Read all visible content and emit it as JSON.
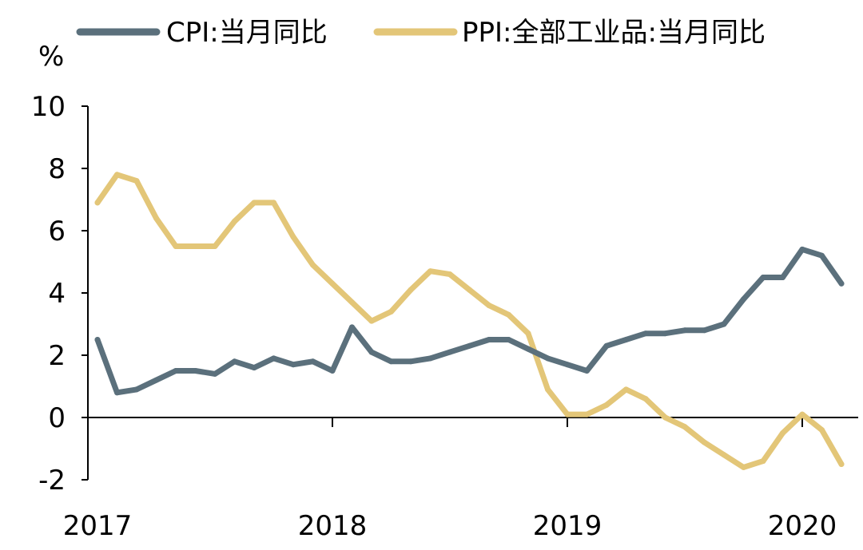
{
  "chart_data": {
    "type": "line",
    "title": "",
    "xlabel": "",
    "ylabel": "%",
    "ylim": [
      -2,
      10
    ],
    "yticks": [
      "-2",
      "0",
      "2",
      "4",
      "6",
      "8",
      "10"
    ],
    "xticks": [
      "2017",
      "2018",
      "2019",
      "2020"
    ],
    "grid": false,
    "legend_position": "top",
    "x": [
      "2017-01",
      "2017-02",
      "2017-03",
      "2017-04",
      "2017-05",
      "2017-06",
      "2017-07",
      "2017-08",
      "2017-09",
      "2017-10",
      "2017-11",
      "2017-12",
      "2018-01",
      "2018-02",
      "2018-03",
      "2018-04",
      "2018-05",
      "2018-06",
      "2018-07",
      "2018-08",
      "2018-09",
      "2018-10",
      "2018-11",
      "2018-12",
      "2019-01",
      "2019-02",
      "2019-03",
      "2019-04",
      "2019-05",
      "2019-06",
      "2019-07",
      "2019-08",
      "2019-09",
      "2019-10",
      "2019-11",
      "2019-12",
      "2020-01",
      "2020-02",
      "2020-03"
    ],
    "series": [
      {
        "name": "CPI:当月同比",
        "color": "#5b707c",
        "values": [
          2.5,
          0.8,
          0.9,
          1.2,
          1.5,
          1.5,
          1.4,
          1.8,
          1.6,
          1.9,
          1.7,
          1.8,
          1.5,
          2.9,
          2.1,
          1.8,
          1.8,
          1.9,
          2.1,
          2.3,
          2.5,
          2.5,
          2.2,
          1.9,
          1.7,
          1.5,
          2.3,
          2.5,
          2.7,
          2.7,
          2.8,
          2.8,
          3.0,
          3.8,
          4.5,
          4.5,
          5.4,
          5.2,
          4.3
        ]
      },
      {
        "name": "PPI:全部工业品:当月同比",
        "color": "#e3c678",
        "values": [
          6.9,
          7.8,
          7.6,
          6.4,
          5.5,
          5.5,
          5.5,
          6.3,
          6.9,
          6.9,
          5.8,
          4.9,
          4.3,
          3.7,
          3.1,
          3.4,
          4.1,
          4.7,
          4.6,
          4.1,
          3.6,
          3.3,
          2.7,
          0.9,
          0.1,
          0.1,
          0.4,
          0.9,
          0.6,
          0.0,
          -0.3,
          -0.8,
          -1.2,
          -1.6,
          -1.4,
          -0.5,
          0.1,
          -0.4,
          -1.5
        ]
      }
    ]
  }
}
